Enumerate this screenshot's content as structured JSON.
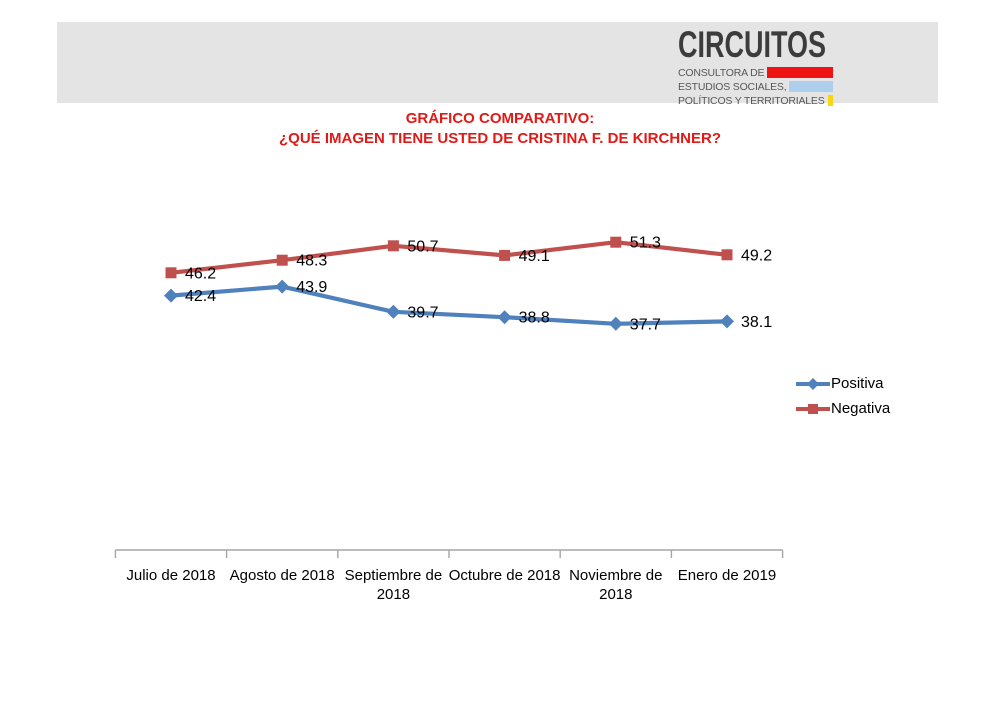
{
  "header": {
    "logo": {
      "brand": "CIRCUITOS",
      "brand_color": "#3c3c3c",
      "band_color": "#e4e4e4",
      "tagline_lines": [
        {
          "text": "CONSULTORA DE",
          "bar_color": "#ee1414"
        },
        {
          "text": "ESTUDIOS SOCIALES,",
          "bar_color": "#aecfec"
        },
        {
          "text": "POLÍTICOS Y TERRITORIALES",
          "bar_color": "#f8d70e"
        }
      ]
    }
  },
  "title": {
    "line1": "GRÁFICO COMPARATIVO:",
    "line2": "¿QUÉ IMAGEN TIENE USTED DE CRISTINA F. DE KIRCHNER?",
    "color": "#e01a17"
  },
  "chart_data": {
    "type": "line",
    "categories": [
      "Julio de 2018",
      "Agosto de 2018",
      "Septiembre de 2018",
      "Octubre de 2018",
      "Noviembre de 2018",
      "Enero de 2019"
    ],
    "series": [
      {
        "name": "Positiva",
        "values": [
          42.4,
          43.9,
          39.7,
          38.8,
          37.7,
          38.1
        ],
        "color": "#4f81bd",
        "marker": "diamond"
      },
      {
        "name": "Negativa",
        "values": [
          46.2,
          48.3,
          50.7,
          49.1,
          51.3,
          49.2
        ],
        "color": "#c0504d",
        "marker": "square"
      }
    ],
    "ylim": [
      0,
      70
    ],
    "xlabel": "",
    "ylabel": "",
    "grid": false,
    "data_labels": true,
    "legend_position": "right",
    "axis_color": "#a6a6a6",
    "label_color": "#000000"
  }
}
